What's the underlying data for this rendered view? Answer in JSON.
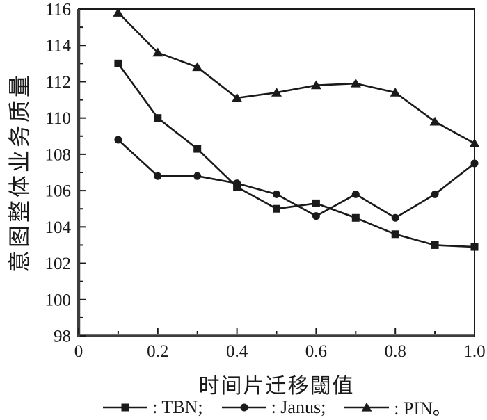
{
  "figure": {
    "background": "#ffffff",
    "ink_color": "#1a1a1a",
    "axis_color": "#3d3d3d"
  },
  "chart_data": {
    "type": "line",
    "title": "",
    "xlabel": "时间片迁移閾值",
    "ylabel": "意图整体业务质量",
    "xlim": [
      0,
      1.0
    ],
    "ylim": [
      98,
      116
    ],
    "grid": false,
    "legend_position": "bottom",
    "x_major_ticks": [
      0,
      0.2,
      0.4,
      0.6,
      0.8,
      1.0
    ],
    "x_major_tick_labels": [
      "0",
      "0.2",
      "0.4",
      "0.6",
      "0.8",
      "1.0"
    ],
    "x_minor_step": 0.1,
    "y_major_ticks": [
      98,
      100,
      102,
      104,
      106,
      108,
      110,
      112,
      114,
      116
    ],
    "y_minor_step": 1,
    "x": [
      0.1,
      0.2,
      0.3,
      0.4,
      0.5,
      0.6,
      0.7,
      0.8,
      0.9,
      1.0
    ],
    "series": [
      {
        "name": "TBN",
        "marker": "square",
        "legend_label": ": TBN;",
        "values": [
          113.0,
          110.0,
          108.3,
          106.2,
          105.0,
          105.3,
          104.5,
          103.6,
          103.0,
          102.9
        ]
      },
      {
        "name": "Janus",
        "marker": "circle",
        "legend_label": ": Janus;",
        "values": [
          108.8,
          106.8,
          106.8,
          106.4,
          105.8,
          104.6,
          105.8,
          104.5,
          105.8,
          107.5
        ]
      },
      {
        "name": "PIN",
        "marker": "triangle",
        "legend_label": ": PIN。",
        "values": [
          115.8,
          113.6,
          112.8,
          111.1,
          111.4,
          111.8,
          111.9,
          111.4,
          109.8,
          108.6
        ]
      }
    ]
  }
}
